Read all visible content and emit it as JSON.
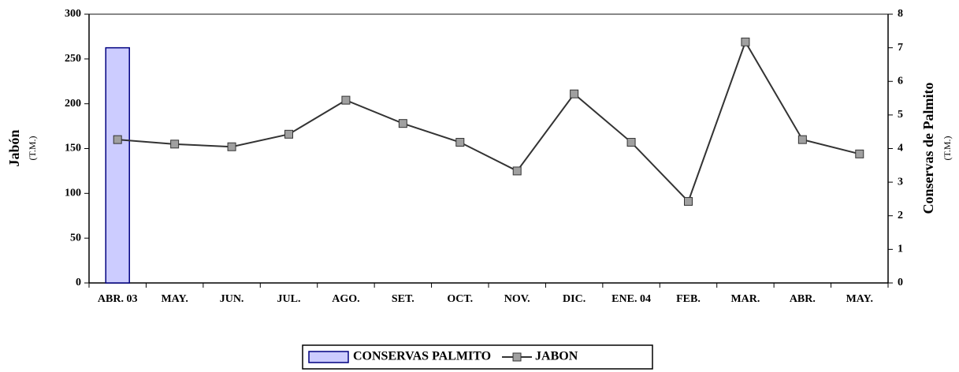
{
  "chart_data": {
    "type": "bar-line",
    "categories": [
      "ABR. 03",
      "MAY.",
      "JUN.",
      "JUL.",
      "AGO.",
      "SET.",
      "OCT.",
      "NOV.",
      "DIC.",
      "ENE. 04",
      "FEB.",
      "MAR.",
      "ABR.",
      "MAY."
    ],
    "series": [
      {
        "name": "CONSERVAS PALMITO",
        "type": "bar",
        "axis": "y2",
        "color": "#ccccff",
        "values": [
          7,
          null,
          null,
          null,
          null,
          null,
          null,
          null,
          null,
          null,
          null,
          null,
          null,
          null
        ]
      },
      {
        "name": "JABON",
        "type": "line",
        "axis": "y",
        "color": "#333333",
        "values": [
          160,
          155,
          152,
          166,
          204,
          178,
          157,
          125,
          211,
          157,
          91,
          269,
          160,
          144
        ]
      }
    ],
    "y_label": "Jabón",
    "y_label_unit": "(T.M.)",
    "y2_label": "Conservas de Palmito",
    "y2_label_unit": "(T.M.)",
    "ylim": [
      0,
      300
    ],
    "yticks": [
      0,
      50,
      100,
      150,
      200,
      250,
      300
    ],
    "y2lim": [
      0,
      8
    ],
    "y2ticks": [
      0,
      1,
      2,
      3,
      4,
      5,
      6,
      7,
      8
    ],
    "legend": "bottom"
  }
}
